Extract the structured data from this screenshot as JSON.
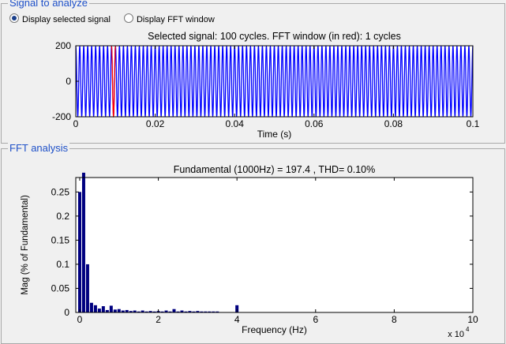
{
  "signal_panel": {
    "title": "Signal to analyze",
    "radio_options": [
      {
        "label": "Display selected signal",
        "checked": true
      },
      {
        "label": "Display FFT window",
        "checked": false
      }
    ]
  },
  "fft_panel": {
    "title": "FFT analysis"
  },
  "chart_data": [
    {
      "type": "line",
      "title": "Selected signal: 100 cycles. FFT window (in red): 1 cycles",
      "xlabel": "Time (s)",
      "ylabel": "",
      "xlim": [
        0,
        0.1
      ],
      "ylim": [
        -200,
        200
      ],
      "xticks": [
        "0",
        "0.02",
        "0.04",
        "0.06",
        "0.08",
        "0.1"
      ],
      "yticks": [
        "200",
        "0",
        "-200"
      ],
      "series": [
        {
          "color": "#0000ff",
          "frequency_hz": 1000,
          "amplitude": 197.4
        },
        {
          "color": "#ff0000",
          "window_start": 0.009,
          "window_end": 0.01
        }
      ],
      "grid": false
    },
    {
      "type": "bar",
      "title": "Fundamental (1000Hz) = 197.4 , THD= 0.10%",
      "xlabel": "Frequency (Hz)",
      "ylabel": "Mag (% of Fundamental)",
      "x_multiplier": "x 10",
      "x_multiplier_exp": "4",
      "xlim": [
        -1000,
        100000
      ],
      "ylim": [
        0,
        0.28
      ],
      "xticks": [
        "0",
        "2",
        "4",
        "6",
        "8",
        "10"
      ],
      "yticks": [
        "0",
        "0.05",
        "0.1",
        "0.15",
        "0.2",
        "0.25"
      ],
      "bar_color": "#000080",
      "x": [
        0,
        1000,
        2000,
        3000,
        4000,
        5000,
        6000,
        7000,
        8000,
        9000,
        10000,
        11000,
        12000,
        13000,
        14000,
        15000,
        16000,
        17000,
        18000,
        19000,
        20000,
        21000,
        22000,
        23000,
        24000,
        25000,
        26000,
        27000,
        28000,
        29000,
        30000,
        31000,
        32000,
        33000,
        34000,
        35000,
        40000
      ],
      "values": [
        0.25,
        0.29,
        0.1,
        0.02,
        0.015,
        0.008,
        0.013,
        0.005,
        0.014,
        0.006,
        0.007,
        0.004,
        0.005,
        0.003,
        0.004,
        0.002,
        0.004,
        0.002,
        0.003,
        0.002,
        0.003,
        0.002,
        0.004,
        0.002,
        0.007,
        0.002,
        0.004,
        0.002,
        0.003,
        0.002,
        0.003,
        0.002,
        0.002,
        0.002,
        0.002,
        0.002,
        0.015
      ],
      "grid": false
    }
  ]
}
